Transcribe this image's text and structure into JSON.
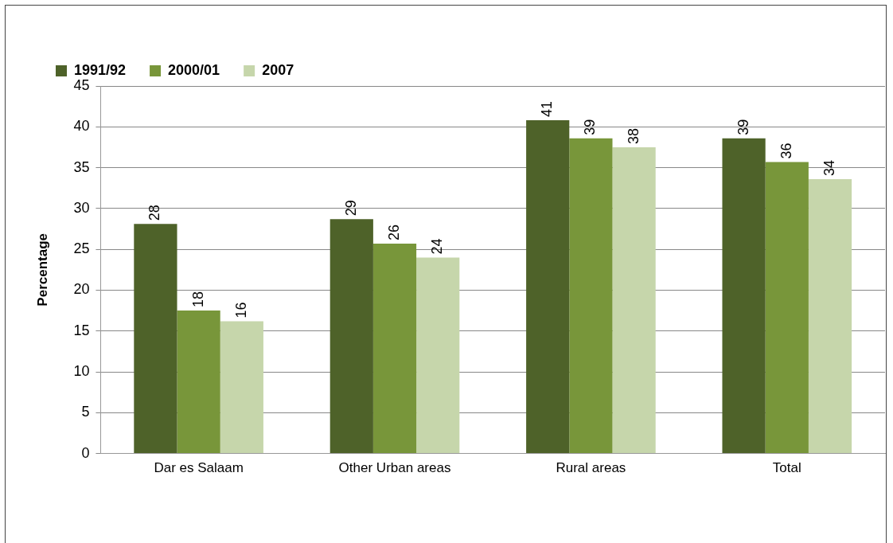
{
  "chart_data": {
    "type": "bar",
    "ylabel": "Percentage",
    "categories": [
      "Dar es Salaam",
      "Other Urban areas",
      "Rural areas",
      "Total"
    ],
    "series": [
      {
        "name": "1991/92",
        "color": "#4e6229",
        "values": [
          28.1,
          28.7,
          40.8,
          38.6
        ],
        "value_labels": [
          "28",
          "29",
          "41",
          "39"
        ]
      },
      {
        "name": "2000/01",
        "color": "#78963a",
        "values": [
          17.5,
          25.7,
          38.6,
          35.7
        ],
        "value_labels": [
          "18",
          "26",
          "39",
          "36"
        ]
      },
      {
        "name": "2007",
        "color": "#c6d6ab",
        "values": [
          16.2,
          24.0,
          37.5,
          33.6
        ],
        "value_labels": [
          "16",
          "24",
          "38",
          "34"
        ]
      }
    ],
    "ylim": [
      0,
      45
    ],
    "yticks": [
      0,
      5,
      10,
      15,
      20,
      25,
      30,
      35,
      40,
      45
    ],
    "grid": "y",
    "legend": "top left"
  }
}
